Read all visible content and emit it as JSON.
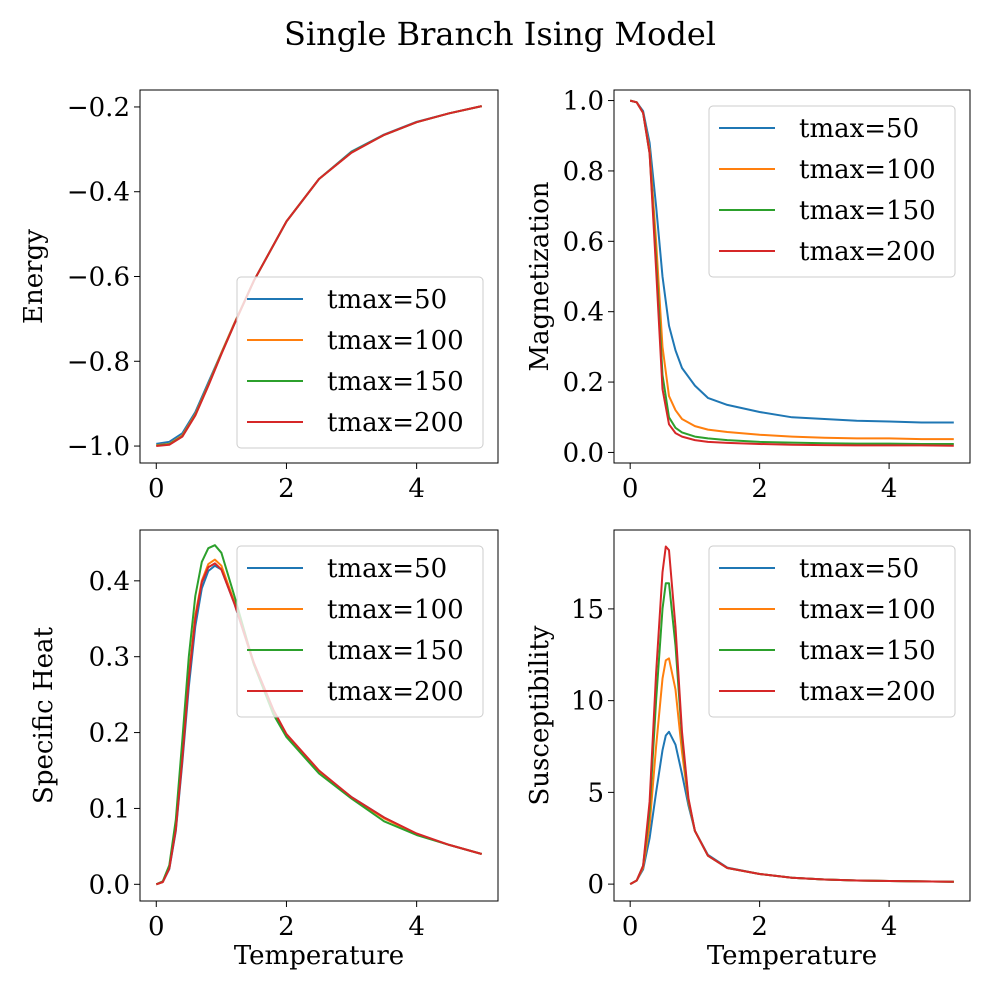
{
  "figure": {
    "title": "Single Branch Ising Model"
  },
  "colors": {
    "tmax=50": "#1f77b4",
    "tmax=100": "#ff7f0e",
    "tmax=150": "#2ca02c",
    "tmax=200": "#d62728"
  },
  "chart_data": [
    {
      "type": "line",
      "xlabel": "",
      "ylabel": "Energy",
      "xlim": [
        -0.25,
        5.25
      ],
      "ylim": [
        -1.04,
        -0.16
      ],
      "xticks": [
        0,
        2,
        4
      ],
      "yticks": [
        -1.0,
        -0.8,
        -0.6,
        -0.4,
        -0.2
      ],
      "yticklabels": [
        "−1.0",
        "−0.8",
        "−0.6",
        "−0.4",
        "−0.2"
      ],
      "legend": "lower-right",
      "x": [
        0,
        0.2,
        0.4,
        0.6,
        0.8,
        1.0,
        1.2,
        1.5,
        2.0,
        2.5,
        3.0,
        3.5,
        4.0,
        4.5,
        5.0
      ],
      "series": [
        {
          "name": "tmax=50",
          "values": [
            -0.995,
            -0.99,
            -0.97,
            -0.92,
            -0.85,
            -0.78,
            -0.71,
            -0.61,
            -0.47,
            -0.37,
            -0.305,
            -0.265,
            -0.235,
            -0.215,
            -0.198
          ]
        },
        {
          "name": "tmax=100",
          "values": [
            -0.998,
            -0.995,
            -0.975,
            -0.925,
            -0.855,
            -0.78,
            -0.71,
            -0.61,
            -0.47,
            -0.37,
            -0.307,
            -0.266,
            -0.236,
            -0.215,
            -0.198
          ]
        },
        {
          "name": "tmax=150",
          "values": [
            -0.999,
            -0.996,
            -0.977,
            -0.927,
            -0.857,
            -0.782,
            -0.712,
            -0.61,
            -0.47,
            -0.37,
            -0.307,
            -0.266,
            -0.236,
            -0.215,
            -0.198
          ]
        },
        {
          "name": "tmax=200",
          "values": [
            -1.0,
            -0.997,
            -0.978,
            -0.928,
            -0.858,
            -0.783,
            -0.712,
            -0.61,
            -0.47,
            -0.37,
            -0.308,
            -0.266,
            -0.236,
            -0.215,
            -0.198
          ]
        }
      ]
    },
    {
      "type": "line",
      "xlabel": "",
      "ylabel": "Magnetization",
      "xlim": [
        -0.25,
        5.25
      ],
      "ylim": [
        -0.03,
        1.03
      ],
      "xticks": [
        0,
        2,
        4
      ],
      "yticks": [
        0.0,
        0.2,
        0.4,
        0.6,
        0.8,
        1.0
      ],
      "yticklabels": [
        "0.0",
        "0.2",
        "0.4",
        "0.6",
        "0.8",
        "1.0"
      ],
      "legend": "upper-right",
      "x": [
        0,
        0.1,
        0.2,
        0.3,
        0.4,
        0.5,
        0.6,
        0.7,
        0.8,
        1.0,
        1.2,
        1.5,
        2.0,
        2.5,
        3.0,
        3.5,
        4.0,
        4.5,
        5.0
      ],
      "series": [
        {
          "name": "tmax=50",
          "values": [
            1.0,
            0.995,
            0.97,
            0.88,
            0.7,
            0.5,
            0.36,
            0.29,
            0.24,
            0.19,
            0.155,
            0.135,
            0.115,
            0.1,
            0.095,
            0.09,
            0.088,
            0.085,
            0.085
          ]
        },
        {
          "name": "tmax=100",
          "values": [
            1.0,
            0.995,
            0.965,
            0.86,
            0.6,
            0.3,
            0.16,
            0.12,
            0.095,
            0.075,
            0.065,
            0.058,
            0.05,
            0.045,
            0.042,
            0.04,
            0.04,
            0.038,
            0.038
          ]
        },
        {
          "name": "tmax=150",
          "values": [
            1.0,
            0.995,
            0.965,
            0.85,
            0.55,
            0.22,
            0.1,
            0.07,
            0.057,
            0.045,
            0.04,
            0.035,
            0.03,
            0.028,
            0.026,
            0.025,
            0.025,
            0.024,
            0.024
          ]
        },
        {
          "name": "tmax=200",
          "values": [
            1.0,
            0.995,
            0.965,
            0.85,
            0.52,
            0.18,
            0.08,
            0.055,
            0.045,
            0.035,
            0.03,
            0.027,
            0.024,
            0.022,
            0.021,
            0.02,
            0.02,
            0.02,
            0.019
          ]
        }
      ]
    },
    {
      "type": "line",
      "xlabel": "Temperature",
      "ylabel": "Specific Heat",
      "xlim": [
        -0.25,
        5.25
      ],
      "ylim": [
        -0.022,
        0.467
      ],
      "xticks": [
        0,
        2,
        4
      ],
      "yticks": [
        0.0,
        0.1,
        0.2,
        0.3,
        0.4
      ],
      "yticklabels": [
        "0.0",
        "0.1",
        "0.2",
        "0.3",
        "0.4"
      ],
      "legend": "upper-right",
      "x": [
        0,
        0.1,
        0.2,
        0.3,
        0.4,
        0.5,
        0.6,
        0.7,
        0.8,
        0.9,
        1.0,
        1.2,
        1.5,
        1.8,
        2.0,
        2.5,
        3.0,
        3.5,
        4.0,
        4.5,
        5.0
      ],
      "series": [
        {
          "name": "tmax=50",
          "values": [
            0.0,
            0.003,
            0.02,
            0.07,
            0.16,
            0.26,
            0.34,
            0.39,
            0.413,
            0.42,
            0.415,
            0.37,
            0.29,
            0.225,
            0.195,
            0.148,
            0.115,
            0.088,
            0.066,
            0.052,
            0.04
          ]
        },
        {
          "name": "tmax=100",
          "values": [
            0.0,
            0.003,
            0.022,
            0.075,
            0.17,
            0.275,
            0.355,
            0.4,
            0.422,
            0.428,
            0.42,
            0.372,
            0.29,
            0.226,
            0.196,
            0.148,
            0.114,
            0.087,
            0.066,
            0.052,
            0.04
          ]
        },
        {
          "name": "tmax=150",
          "values": [
            0.0,
            0.004,
            0.025,
            0.085,
            0.19,
            0.3,
            0.38,
            0.425,
            0.443,
            0.447,
            0.437,
            0.38,
            0.29,
            0.224,
            0.194,
            0.146,
            0.113,
            0.083,
            0.065,
            0.052,
            0.04
          ]
        },
        {
          "name": "tmax=200",
          "values": [
            0.0,
            0.003,
            0.021,
            0.072,
            0.165,
            0.27,
            0.35,
            0.398,
            0.418,
            0.423,
            0.415,
            0.37,
            0.292,
            0.23,
            0.198,
            0.15,
            0.115,
            0.088,
            0.067,
            0.052,
            0.04
          ]
        }
      ]
    },
    {
      "type": "line",
      "xlabel": "Temperature",
      "ylabel": "Susceptibility",
      "xlim": [
        -0.25,
        5.25
      ],
      "ylim": [
        -0.92,
        19.3
      ],
      "xticks": [
        0,
        2,
        4
      ],
      "yticks": [
        0,
        5,
        10,
        15
      ],
      "yticklabels": [
        "0",
        "5",
        "10",
        "15"
      ],
      "legend": "upper-right",
      "x": [
        0,
        0.1,
        0.2,
        0.3,
        0.4,
        0.5,
        0.55,
        0.6,
        0.7,
        0.8,
        0.9,
        1.0,
        1.2,
        1.5,
        2.0,
        2.5,
        3.0,
        3.5,
        4.0,
        4.5,
        5.0
      ],
      "series": [
        {
          "name": "tmax=50",
          "values": [
            0.0,
            0.2,
            0.8,
            2.5,
            5.0,
            7.3,
            8.1,
            8.3,
            7.6,
            6.0,
            4.3,
            2.9,
            1.6,
            0.9,
            0.55,
            0.35,
            0.25,
            0.2,
            0.17,
            0.15,
            0.13
          ]
        },
        {
          "name": "tmax=100",
          "values": [
            0.0,
            0.2,
            0.9,
            3.2,
            7.5,
            11.2,
            12.2,
            12.3,
            10.6,
            7.2,
            4.5,
            2.9,
            1.55,
            0.88,
            0.55,
            0.35,
            0.25,
            0.2,
            0.17,
            0.15,
            0.13
          ]
        },
        {
          "name": "tmax=150",
          "values": [
            0.0,
            0.2,
            1.0,
            4.0,
            10.0,
            15.0,
            16.4,
            16.4,
            13.0,
            8.0,
            4.6,
            2.9,
            1.55,
            0.88,
            0.55,
            0.35,
            0.25,
            0.2,
            0.17,
            0.15,
            0.13
          ]
        },
        {
          "name": "tmax=200",
          "values": [
            0.0,
            0.2,
            1.0,
            4.5,
            11.5,
            17.0,
            18.4,
            18.2,
            14.0,
            8.3,
            4.7,
            2.9,
            1.55,
            0.88,
            0.55,
            0.35,
            0.25,
            0.2,
            0.17,
            0.15,
            0.13
          ]
        }
      ]
    }
  ]
}
